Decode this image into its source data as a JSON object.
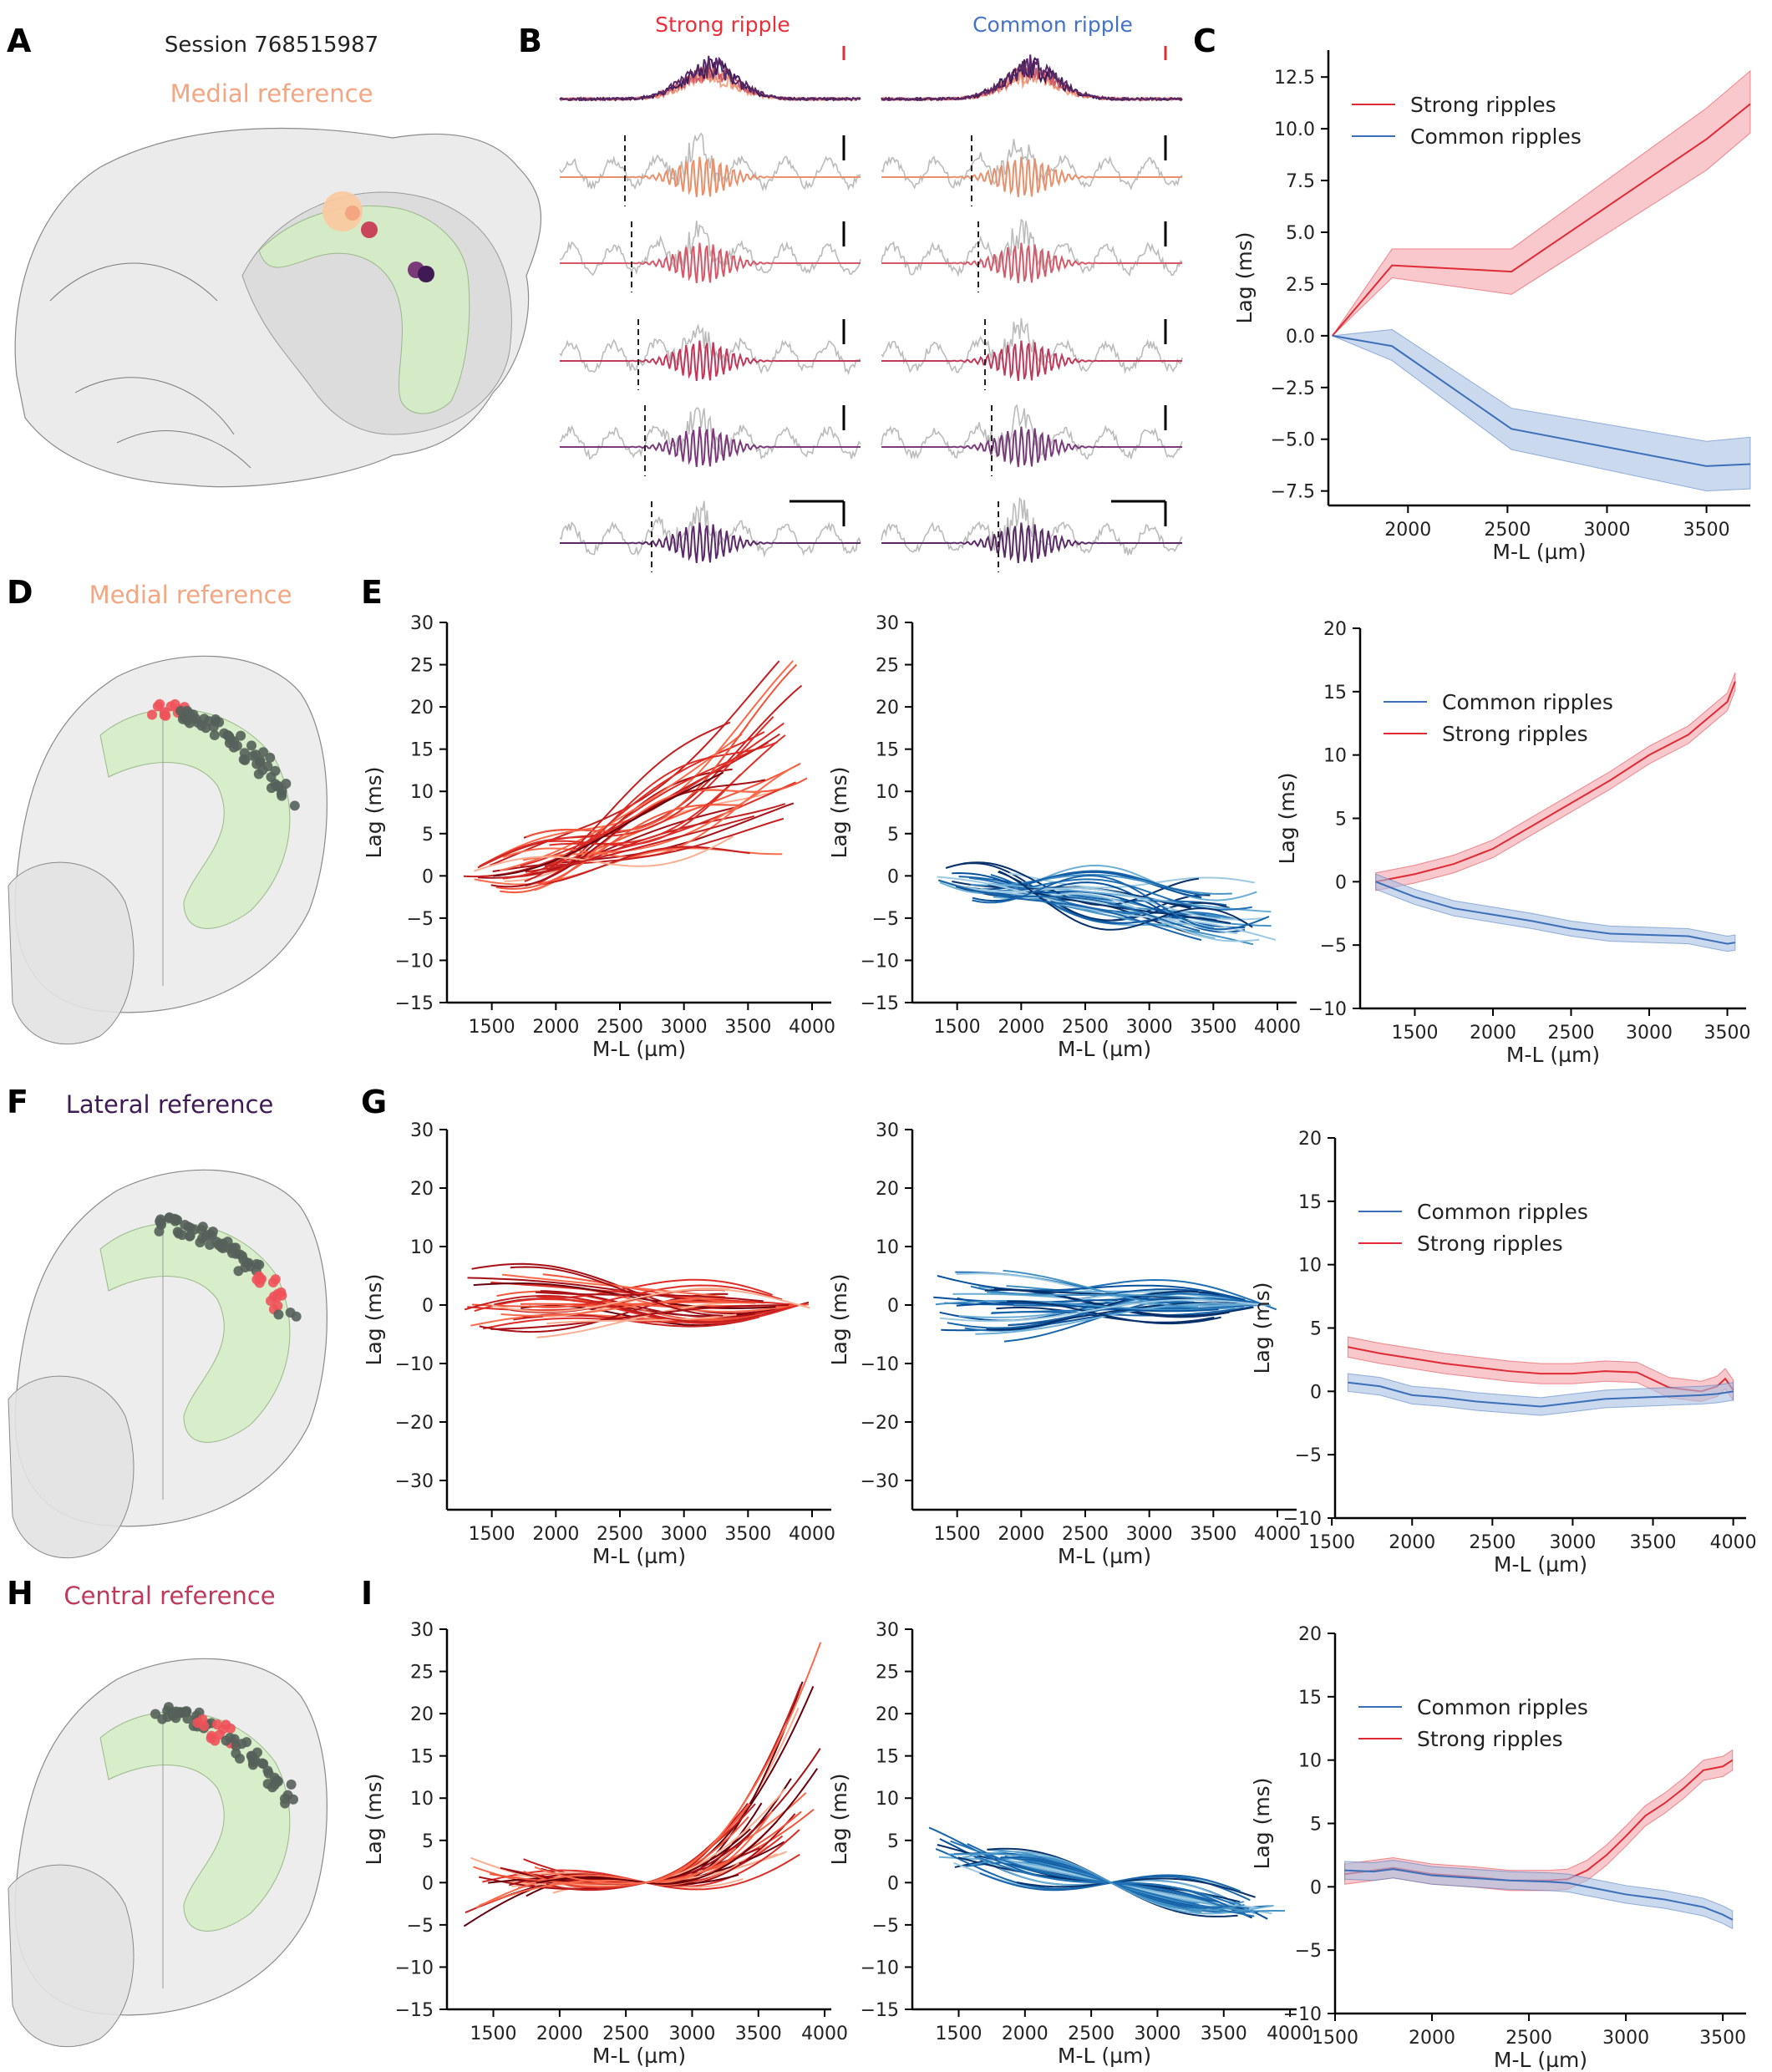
{
  "figure": {
    "panel_letters": [
      "A",
      "B",
      "C",
      "D",
      "E",
      "F",
      "G",
      "H",
      "I"
    ],
    "session_label": "Session 768515987",
    "reference_labels": {
      "A": {
        "text": "Medial reference",
        "color": "#f4a582"
      },
      "D": {
        "text": "Medial reference",
        "color": "#f4a582"
      },
      "F": {
        "text": "Lateral reference",
        "color": "#3f1a55"
      },
      "H": {
        "text": "Central reference",
        "color": "#c0395a"
      }
    },
    "ripple_titles": {
      "strong": {
        "text": "Strong ripple",
        "color": "#e8303a"
      },
      "common": {
        "text": "Common ripple",
        "color": "#4472c4"
      }
    },
    "colors": {
      "strong": "#e02b35",
      "strong_fill": "#f5a3aa",
      "common": "#3b6fba",
      "common_fill": "#a9bfe3",
      "brain": "#cfcfcf",
      "hippocampus": "#cfe8c0"
    }
  },
  "chart_data": [
    {
      "id": "C",
      "type": "line",
      "xlabel": "M-L (µm)",
      "ylabel": "Lag (ms)",
      "xlim": [
        1600,
        3720
      ],
      "ylim": [
        -8.2,
        13.8
      ],
      "xticks": [
        2000,
        2500,
        3000,
        3500
      ],
      "yticks": [
        -7.5,
        -5.0,
        -2.5,
        0.0,
        2.5,
        5.0,
        7.5,
        10.0,
        12.5
      ],
      "ytick_labels": [
        "−7.5",
        "−5.0",
        "−2.5",
        "0.0",
        "2.5",
        "5.0",
        "7.5",
        "10.0",
        "12.5"
      ],
      "legend": [
        "Strong ripples",
        "Common ripples"
      ],
      "legend_location": "upper-left",
      "series": [
        {
          "name": "Strong ripples",
          "x": [
            1620,
            1920,
            2520,
            3500,
            3720
          ],
          "y": [
            0,
            3.4,
            3.1,
            9.5,
            11.2
          ],
          "band_lo": [
            0,
            2.8,
            2.0,
            8.0,
            9.8
          ],
          "band_hi": [
            0,
            4.2,
            4.2,
            11.0,
            12.8
          ]
        },
        {
          "name": "Common ripples",
          "x": [
            1620,
            1920,
            2520,
            3500,
            3720
          ],
          "y": [
            0,
            -0.5,
            -4.5,
            -6.3,
            -6.2
          ],
          "band_lo": [
            0,
            -1.2,
            -5.5,
            -7.5,
            -7.4
          ],
          "band_hi": [
            0,
            0.3,
            -3.5,
            -5.1,
            -4.9
          ]
        }
      ]
    },
    {
      "id": "E-strong",
      "type": "line",
      "xlabel": "M-L (µm)",
      "ylabel": "Lag (ms)",
      "xlim": [
        1150,
        4150
      ],
      "ylim": [
        -15,
        30
      ],
      "xticks": [
        1500,
        2000,
        2500,
        3000,
        3500,
        4000
      ],
      "yticks": [
        -15,
        -10,
        -5,
        0,
        5,
        10,
        15,
        20,
        25,
        30
      ],
      "ytick_labels": [
        "−15",
        "−10",
        "−5",
        "0",
        "5",
        "10",
        "15",
        "20",
        "25",
        "30"
      ],
      "palette": "reds",
      "pattern": "rise",
      "n_traces": 34,
      "ref_x": 1250
    },
    {
      "id": "E-common",
      "type": "line",
      "xlabel": "M-L (µm)",
      "ylabel": "Lag (ms)",
      "xlim": [
        1150,
        4150
      ],
      "ylim": [
        -15,
        30
      ],
      "xticks": [
        1500,
        2000,
        2500,
        3000,
        3500,
        4000
      ],
      "yticks": [
        -15,
        -10,
        -5,
        0,
        5,
        10,
        15,
        20,
        25,
        30
      ],
      "ytick_labels": [
        "−15",
        "−10",
        "−5",
        "0",
        "5",
        "10",
        "15",
        "20",
        "25",
        "30"
      ],
      "palette": "blues",
      "pattern": "fall",
      "n_traces": 34,
      "ref_x": 1250
    },
    {
      "id": "E-mean",
      "type": "line",
      "xlabel": "M-L (µm)",
      "ylabel": "Lag (ms)",
      "xlim": [
        1150,
        3620
      ],
      "ylim": [
        -10,
        20
      ],
      "xticks": [
        1500,
        2000,
        2500,
        3000,
        3500
      ],
      "yticks": [
        -10,
        -5,
        0,
        5,
        10,
        15,
        20
      ],
      "ytick_labels": [
        "−10",
        "−5",
        "0",
        "5",
        "10",
        "15",
        "20"
      ],
      "legend": [
        "Common ripples",
        "Strong ripples"
      ],
      "legend_location": "upper-left",
      "series": [
        {
          "name": "Strong ripples",
          "x": [
            1250,
            1500,
            1750,
            2000,
            2250,
            2500,
            2750,
            3000,
            3250,
            3500,
            3550
          ],
          "y": [
            0,
            0.6,
            1.4,
            2.6,
            4.4,
            6.2,
            8.0,
            10.0,
            11.6,
            14.2,
            15.8
          ],
          "band": 0.7
        },
        {
          "name": "Common ripples",
          "x": [
            1250,
            1500,
            1750,
            2000,
            2250,
            2500,
            2750,
            3000,
            3250,
            3500,
            3550
          ],
          "y": [
            0,
            -1.2,
            -2.1,
            -2.6,
            -3.1,
            -3.7,
            -4.1,
            -4.2,
            -4.3,
            -4.9,
            -4.8
          ],
          "band": 0.6
        }
      ]
    },
    {
      "id": "G-strong",
      "type": "line",
      "xlabel": "M-L (µm)",
      "ylabel": "Lag (ms)",
      "xlim": [
        1150,
        4150
      ],
      "ylim": [
        -35,
        30
      ],
      "xticks": [
        1500,
        2000,
        2500,
        3000,
        3500,
        4000
      ],
      "yticks": [
        -30,
        -20,
        -10,
        0,
        10,
        20,
        30
      ],
      "ytick_labels": [
        "−30",
        "−20",
        "−10",
        "0",
        "10",
        "20",
        "30"
      ],
      "palette": "reds",
      "pattern": "flat",
      "n_traces": 34,
      "ref_x": 3900
    },
    {
      "id": "G-common",
      "type": "line",
      "xlabel": "M-L (µm)",
      "ylabel": "Lag (ms)",
      "xlim": [
        1150,
        4150
      ],
      "ylim": [
        -35,
        30
      ],
      "xticks": [
        1500,
        2000,
        2500,
        3000,
        3500,
        4000
      ],
      "yticks": [
        -30,
        -20,
        -10,
        0,
        10,
        20,
        30
      ],
      "ytick_labels": [
        "−30",
        "−20",
        "−10",
        "0",
        "10",
        "20",
        "30"
      ],
      "palette": "blues",
      "pattern": "flat",
      "n_traces": 34,
      "ref_x": 3900
    },
    {
      "id": "G-mean",
      "type": "line",
      "xlabel": "M-L (µm)",
      "ylabel": "Lag (ms)",
      "xlim": [
        1520,
        4080
      ],
      "ylim": [
        -10,
        20
      ],
      "xticks": [
        1500,
        2000,
        2500,
        3000,
        3500,
        4000
      ],
      "yticks": [
        -10,
        -5,
        0,
        5,
        10,
        15,
        20
      ],
      "ytick_labels": [
        "−10",
        "−5",
        "0",
        "5",
        "10",
        "15",
        "20"
      ],
      "legend": [
        "Common ripples",
        "Strong ripples"
      ],
      "legend_location": "upper-left",
      "series": [
        {
          "name": "Strong ripples",
          "x": [
            1600,
            1800,
            2000,
            2200,
            2400,
            2600,
            2800,
            3000,
            3200,
            3400,
            3600,
            3800,
            3900,
            3950,
            4000
          ],
          "y": [
            3.5,
            3.0,
            2.6,
            2.2,
            1.9,
            1.6,
            1.4,
            1.4,
            1.6,
            1.5,
            0.3,
            0.0,
            0.4,
            1.0,
            0.1
          ],
          "band": 0.8
        },
        {
          "name": "Common ripples",
          "x": [
            1600,
            1800,
            2000,
            2200,
            2400,
            2600,
            2800,
            3000,
            3200,
            3400,
            3600,
            3800,
            3900,
            4000
          ],
          "y": [
            0.7,
            0.4,
            -0.3,
            -0.5,
            -0.8,
            -1.0,
            -1.2,
            -0.9,
            -0.6,
            -0.5,
            -0.4,
            -0.3,
            -0.2,
            0.0
          ],
          "band": 0.7
        }
      ]
    },
    {
      "id": "I-strong",
      "type": "line",
      "xlabel": "M-L (µm)",
      "ylabel": "Lag (ms)",
      "xlim": [
        1150,
        4050
      ],
      "ylim": [
        -15,
        30
      ],
      "xticks": [
        1500,
        2000,
        2500,
        3000,
        3500,
        4000
      ],
      "yticks": [
        -15,
        -10,
        -5,
        0,
        5,
        10,
        15,
        20,
        25,
        30
      ],
      "ytick_labels": [
        "−15",
        "−10",
        "−5",
        "0",
        "5",
        "10",
        "15",
        "20",
        "25",
        "30"
      ],
      "palette": "reds",
      "pattern": "vee",
      "n_traces": 34,
      "ref_x": 2650
    },
    {
      "id": "I-common",
      "type": "line",
      "xlabel": "M-L (µm)",
      "ylabel": "Lag (ms)",
      "xlim": [
        1150,
        4050
      ],
      "ylim": [
        -15,
        30
      ],
      "xticks": [
        1500,
        2000,
        2500,
        3000,
        3500,
        4000
      ],
      "yticks": [
        -15,
        -10,
        -5,
        0,
        5,
        10,
        15,
        20,
        25,
        30
      ],
      "ytick_labels": [
        "−15",
        "−10",
        "−5",
        "0",
        "5",
        "10",
        "15",
        "20",
        "25",
        "30"
      ],
      "palette": "blues",
      "pattern": "slope",
      "n_traces": 34,
      "ref_x": 2650
    },
    {
      "id": "I-mean",
      "type": "line",
      "xlabel": "M-L (µm)",
      "ylabel": "Lag (ms)",
      "xlim": [
        1500,
        3620
      ],
      "ylim": [
        -10,
        20
      ],
      "xticks": [
        1500,
        2000,
        2500,
        3000,
        3500
      ],
      "yticks": [
        -10,
        -5,
        0,
        5,
        10,
        15,
        20
      ],
      "ytick_labels": [
        "−10",
        "−5",
        "0",
        "5",
        "10",
        "15",
        "20"
      ],
      "legend": [
        "Common ripples",
        "Strong ripples"
      ],
      "legend_location": "upper-left",
      "series": [
        {
          "name": "Strong ripples",
          "x": [
            1550,
            1700,
            1800,
            2000,
            2200,
            2400,
            2600,
            2700,
            2800,
            2900,
            3000,
            3100,
            3200,
            3300,
            3400,
            3500,
            3550
          ],
          "y": [
            1.0,
            1.3,
            1.5,
            1.0,
            0.8,
            0.5,
            0.5,
            0.6,
            1.3,
            2.5,
            4.0,
            5.6,
            6.6,
            7.8,
            9.2,
            9.5,
            10.0
          ],
          "band": 0.8
        },
        {
          "name": "Common ripples",
          "x": [
            1550,
            1700,
            1800,
            2000,
            2200,
            2400,
            2600,
            2700,
            2800,
            2900,
            3000,
            3100,
            3200,
            3300,
            3400,
            3500,
            3550
          ],
          "y": [
            1.3,
            1.2,
            1.4,
            0.9,
            0.7,
            0.5,
            0.4,
            0.3,
            0.0,
            -0.3,
            -0.6,
            -0.8,
            -1.0,
            -1.3,
            -1.6,
            -2.2,
            -2.6
          ],
          "band": 0.7
        }
      ]
    }
  ]
}
